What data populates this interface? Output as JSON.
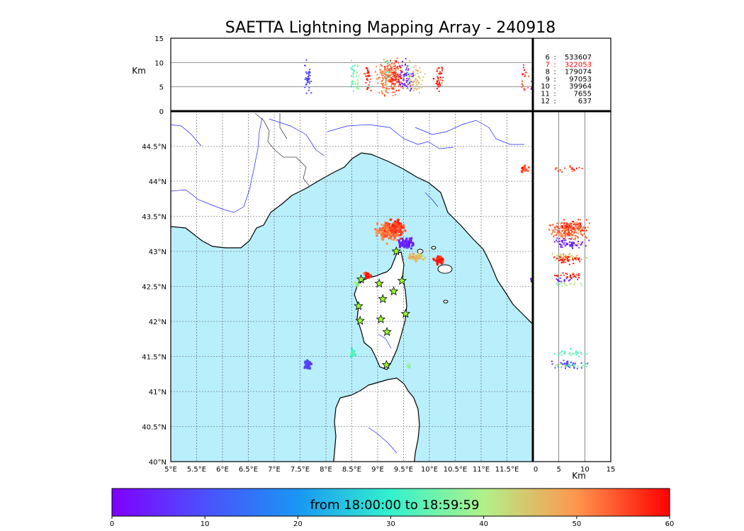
{
  "title": "SAETTA Lightning Mapping Array - 240918",
  "colors": {
    "sea": "#b9eefb",
    "land": "#ffffff",
    "coast": "#000000",
    "river": "#2020ff",
    "grid": "#555555",
    "station_fill": "#9cff30",
    "highlight_text": "#ff0000"
  },
  "chart_data": [
    {
      "type": "scatter",
      "panel": "map",
      "xlim": [
        5,
        12.0
      ],
      "ylim": [
        40,
        45
      ],
      "x_ticks": [
        5,
        5.5,
        6,
        6.5,
        7,
        7.5,
        8,
        8.5,
        9,
        9.5,
        10,
        10.5,
        11,
        11.5
      ],
      "x_tick_labels": [
        "5°E",
        "5.5°E",
        "6°E",
        "6.5°E",
        "7°E",
        "7.5°E",
        "8°E",
        "8.5°E",
        "9°E",
        "9.5°E",
        "10°E",
        "10.5°E",
        "11°E",
        "11.5°E"
      ],
      "y_ticks": [
        40,
        40.5,
        41,
        41.5,
        42,
        42.5,
        43,
        43.5,
        44,
        44.5
      ],
      "y_tick_labels": [
        "40°N",
        "40.5°N",
        "41°N",
        "41.5°N",
        "42°N",
        "42.5°N",
        "43°N",
        "43.5°N",
        "44°N",
        "44.5°N"
      ],
      "grid": true,
      "stations": [
        {
          "lon": 9.36,
          "lat": 43.0
        },
        {
          "lon": 8.68,
          "lat": 42.6
        },
        {
          "lon": 9.03,
          "lat": 42.54
        },
        {
          "lon": 9.47,
          "lat": 42.58
        },
        {
          "lon": 9.31,
          "lat": 42.43
        },
        {
          "lon": 9.1,
          "lat": 42.32
        },
        {
          "lon": 8.63,
          "lat": 42.22
        },
        {
          "lon": 9.54,
          "lat": 42.11
        },
        {
          "lon": 8.66,
          "lat": 42.01
        },
        {
          "lon": 9.06,
          "lat": 42.03
        },
        {
          "lon": 9.18,
          "lat": 41.85
        },
        {
          "lon": 9.17,
          "lat": 41.38
        }
      ],
      "lightning_clusters": [
        {
          "lon": 9.2,
          "lat": 43.28,
          "w": 0.32,
          "h": 0.18,
          "time_min": 52,
          "n": 160
        },
        {
          "lon": 9.35,
          "lat": 43.35,
          "w": 0.22,
          "h": 0.14,
          "time_min": 56,
          "n": 90
        },
        {
          "lon": 9.55,
          "lat": 43.1,
          "w": 0.22,
          "h": 0.12,
          "time_min": 5,
          "n": 60
        },
        {
          "lon": 9.75,
          "lat": 42.92,
          "w": 0.2,
          "h": 0.07,
          "time_min": 46,
          "n": 50
        },
        {
          "lon": 10.18,
          "lat": 42.88,
          "w": 0.14,
          "h": 0.08,
          "time_min": 58,
          "n": 40
        },
        {
          "lon": 8.82,
          "lat": 42.65,
          "w": 0.1,
          "h": 0.06,
          "time_min": 57,
          "n": 30
        },
        {
          "lon": 8.6,
          "lat": 42.53,
          "w": 0.1,
          "h": 0.04,
          "time_min": 40,
          "n": 15
        },
        {
          "lon": 8.52,
          "lat": 41.55,
          "w": 0.08,
          "h": 0.08,
          "time_min": 33,
          "n": 25
        },
        {
          "lon": 7.65,
          "lat": 41.38,
          "w": 0.12,
          "h": 0.08,
          "time_min": 9,
          "n": 40
        },
        {
          "lon": 9.18,
          "lat": 41.37,
          "w": 0.08,
          "h": 0.04,
          "time_min": 35,
          "n": 12
        },
        {
          "lon": 9.6,
          "lat": 41.37,
          "w": 0.06,
          "h": 0.04,
          "time_min": 38,
          "n": 10
        },
        {
          "lon": 11.85,
          "lat": 44.18,
          "w": 0.12,
          "h": 0.06,
          "time_min": 55,
          "n": 20
        },
        {
          "lon": 12.0,
          "lat": 42.6,
          "w": 0.05,
          "h": 0.05,
          "time_min": 3,
          "n": 15
        }
      ]
    },
    {
      "type": "scatter",
      "panel": "altitude-longitude",
      "xlim": [
        5,
        12.0
      ],
      "ylim": [
        0,
        15
      ],
      "ylabel": "Km",
      "y_ticks": [
        0,
        5,
        10,
        15
      ],
      "grid": true
    },
    {
      "type": "scatter",
      "panel": "latitude-altitude",
      "xlim": [
        0,
        15
      ],
      "ylim": [
        40,
        45
      ],
      "xlabel": "Km",
      "x_ticks": [
        0,
        5,
        10,
        15
      ],
      "grid": true
    },
    {
      "type": "table",
      "panel": "altitude-counts",
      "rows": [
        {
          "altitude": "6",
          "count": "533607",
          "highlight": false
        },
        {
          "altitude": "7",
          "count": "322053",
          "highlight": true
        },
        {
          "altitude": "8",
          "count": "179074",
          "highlight": false
        },
        {
          "altitude": "9",
          "count": "97053",
          "highlight": false
        },
        {
          "altitude": "10",
          "count": "39964",
          "highlight": false
        },
        {
          "altitude": "11",
          "count": "7655",
          "highlight": false
        },
        {
          "altitude": "12",
          "count": "637",
          "highlight": false
        }
      ]
    },
    {
      "type": "heatmap",
      "panel": "colorbar",
      "range": [
        0,
        60
      ],
      "ticks": [
        0,
        10,
        20,
        30,
        40,
        50,
        60
      ],
      "label": "from 18:00:00 to 18:59:59",
      "colormap": "rainbow"
    }
  ]
}
